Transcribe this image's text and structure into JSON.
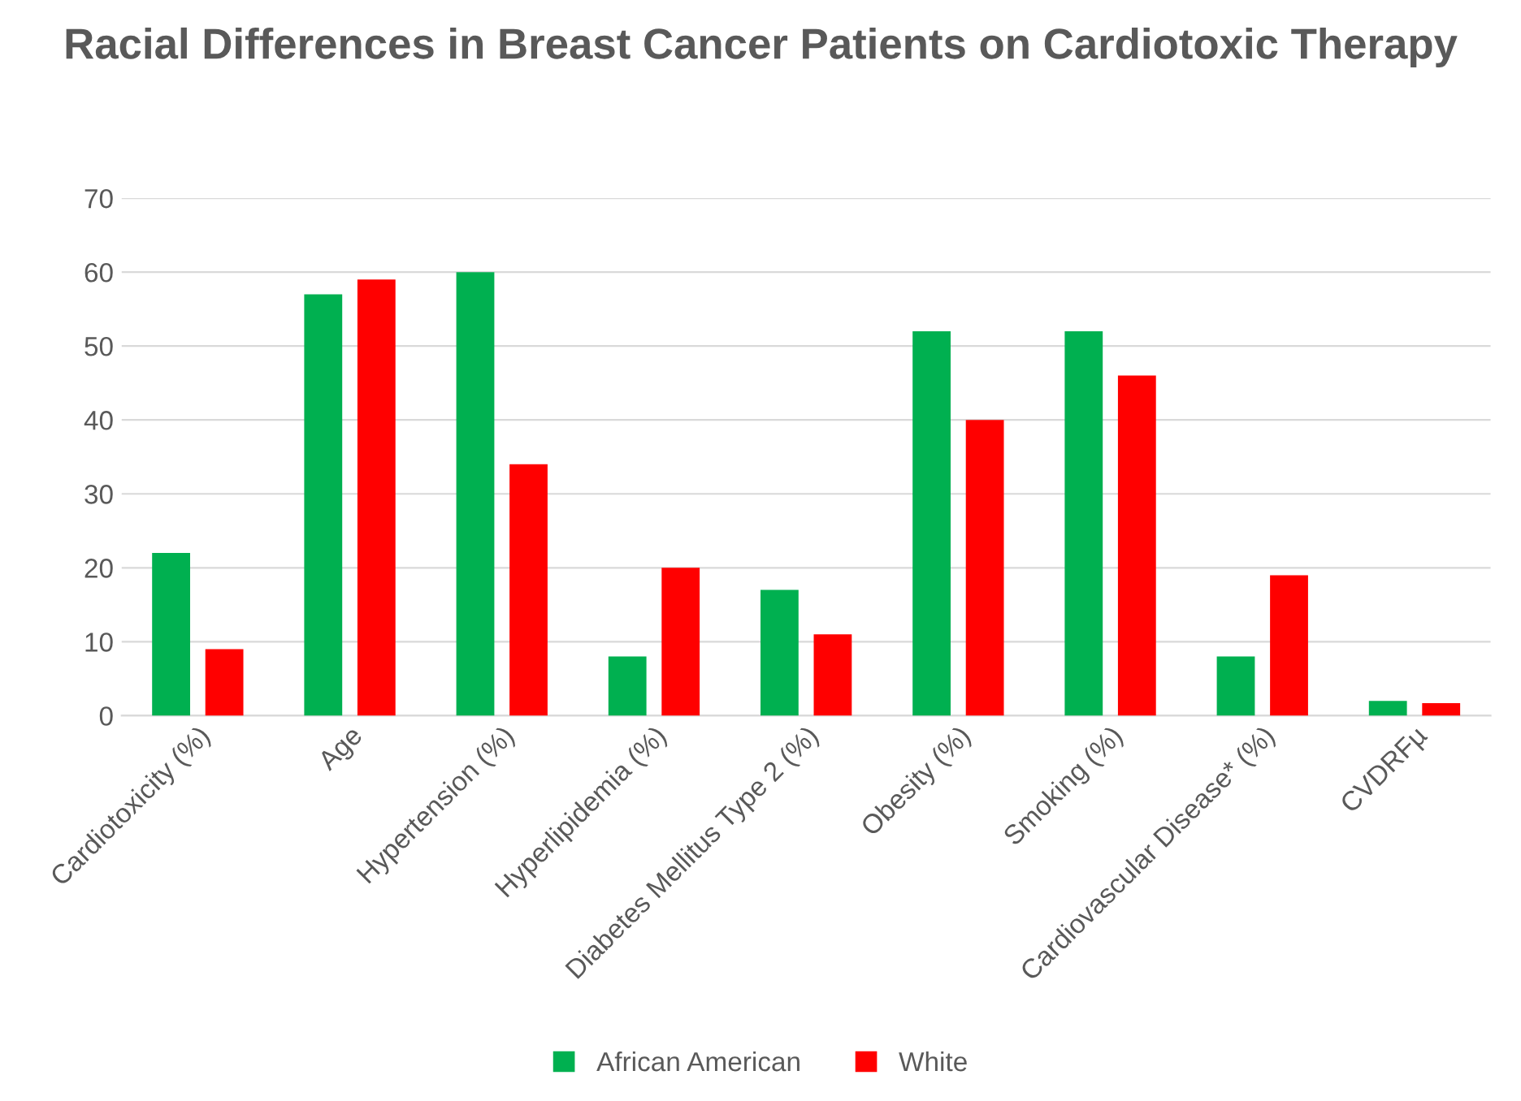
{
  "chart_data": {
    "type": "bar",
    "title": "Racial Differences in Breast Cancer Patients on Cardiotoxic Therapy",
    "categories": [
      "Cardiotoxicity (%)",
      "Age",
      "Hypertension (%)",
      "Hyperlipidemia (%)",
      "Diabetes Mellitus Type 2 (%)",
      "Obesity (%)",
      "Smoking (%)",
      "Cardiovascular Disease* (%)",
      "CVDRFµ"
    ],
    "series": [
      {
        "name": "African American",
        "color": "#00b050",
        "values": [
          22,
          57,
          60,
          8,
          17,
          52,
          52,
          8,
          2
        ]
      },
      {
        "name": "White",
        "color": "#ff0000",
        "values": [
          9,
          59,
          34,
          20,
          11,
          40,
          46,
          19,
          1.7
        ]
      }
    ],
    "ylim": [
      0,
      70
    ],
    "yticks": [
      0,
      10,
      20,
      30,
      40,
      50,
      60,
      70
    ],
    "grid": "y",
    "legend": "bottom"
  }
}
